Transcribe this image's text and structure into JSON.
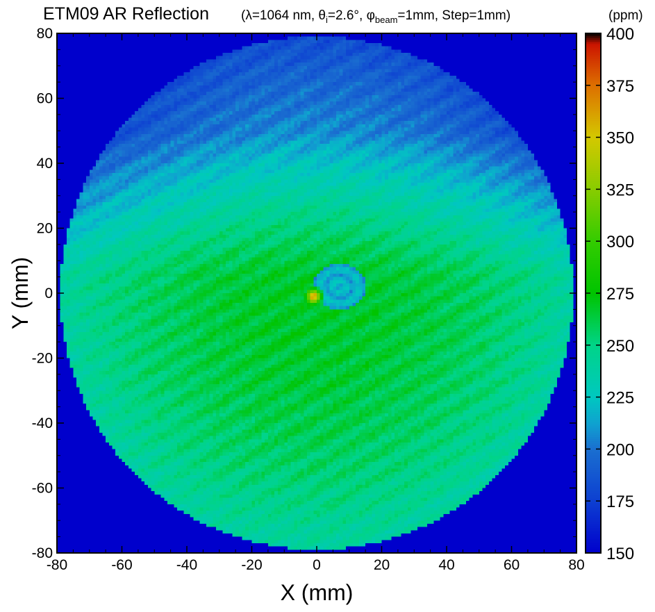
{
  "chart_data": {
    "type": "heatmap",
    "title": "ETM09 AR Reflection",
    "subtitle_parts": {
      "open": "(",
      "lambda_sym": "λ",
      "lambda_val": "=1064 nm, ",
      "theta_sym": "θ",
      "theta_sub": "i",
      "theta_val": "=2.6°, ",
      "phi_sym": "φ",
      "phi_sub": "beam",
      "phi_val": "=1mm, Step=1mm)"
    },
    "xlabel": "X (mm)",
    "ylabel": "Y (mm)",
    "xlim": [
      -80,
      80
    ],
    "ylim": [
      -80,
      80
    ],
    "x_ticks": [
      "-80",
      "-60",
      "-40",
      "-20",
      "0",
      "20",
      "40",
      "60",
      "80"
    ],
    "y_ticks": [
      "80",
      "60",
      "40",
      "20",
      "0",
      "-20",
      "-40",
      "-60",
      "-80"
    ],
    "x_tick_values": [
      -80,
      -60,
      -40,
      -20,
      0,
      20,
      40,
      60,
      80
    ],
    "y_tick_values": [
      80,
      60,
      40,
      20,
      0,
      -20,
      -40,
      -60,
      -80
    ],
    "grid": false,
    "sample_radius_mm": 79,
    "step_mm": 1,
    "colorbar": {
      "unit": "(ppm)",
      "range": [
        150,
        400
      ],
      "tick_values": [
        400,
        375,
        350,
        325,
        300,
        275,
        250,
        225,
        200,
        175,
        150
      ],
      "tick_labels": [
        "400",
        "375",
        "350",
        "325",
        "300",
        "275",
        "250",
        "225",
        "200",
        "175",
        "150"
      ],
      "colors": [
        "#0000cc",
        "#0d3fd1",
        "#1a6fd0",
        "#10a0d0",
        "#00c8c0",
        "#00d488",
        "#00c400",
        "#33cc00",
        "#88cc00",
        "#d4c800",
        "#dd7000",
        "#cc1400",
        "#000000"
      ],
      "color_stops": [
        150,
        175,
        200,
        212,
        225,
        250,
        275,
        300,
        325,
        350,
        375,
        395,
        400
      ]
    },
    "background_value_ppm": 150,
    "regions": {
      "center_value_ppm": 268,
      "upper_value_ppm": 210,
      "lower_edge_value_ppm": 245,
      "central_defect_center_mm": [
        7,
        2
      ],
      "central_defect_value_ppm": 205,
      "hot_spot_center_mm": [
        -1,
        -1
      ],
      "hot_spot_value_ppm": 380
    }
  }
}
